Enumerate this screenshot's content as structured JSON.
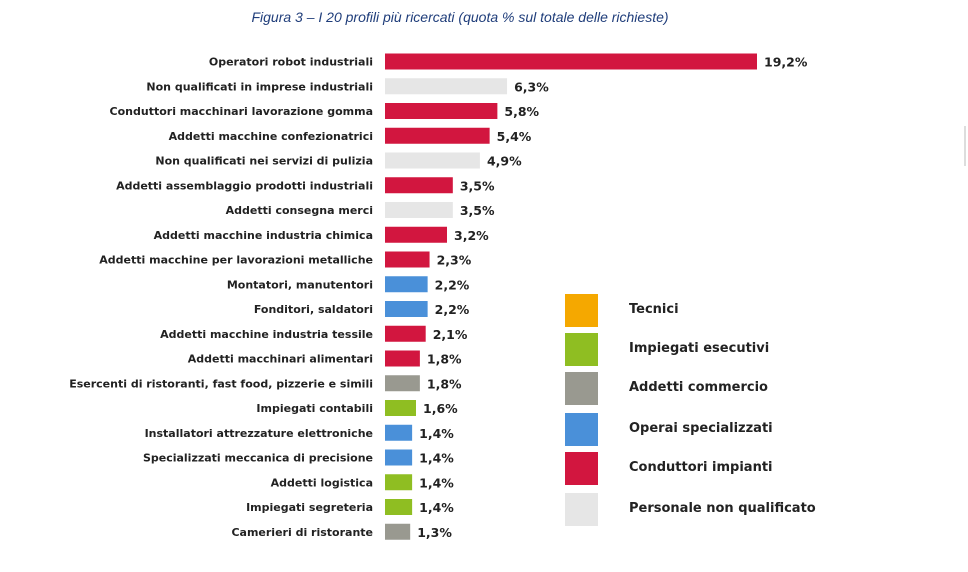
{
  "title": "Figura 3 – I 20 profili più ricercati (quota % sul totale delle richieste)",
  "colors": {
    "tecnici": "#f5a800",
    "impiegati": "#8fbe22",
    "commercio": "#999990",
    "operai": "#4a90d9",
    "conduttori": "#d2163f",
    "non_qualificato": "#e6e6e6"
  },
  "legend": [
    {
      "label": "Tecnici",
      "group": "tecnici"
    },
    {
      "label": "Impiegati esecutivi",
      "group": "impiegati"
    },
    {
      "label": "Addetti commercio",
      "group": "commercio"
    },
    {
      "label": "Operai specializzati",
      "group": "operai"
    },
    {
      "label": "Conduttori impianti",
      "group": "conduttori"
    },
    {
      "label": "Personale non qualificato",
      "group": "non_qualificato"
    }
  ],
  "chart_data": {
    "type": "bar",
    "orientation": "horizontal",
    "title": "Figura 3 – I 20 profili più ricercati (quota % sul totale delle richieste)",
    "xlabel": "",
    "ylabel": "",
    "xlim": [
      0,
      19.2
    ],
    "grid": false,
    "legend_position": "bottom-right",
    "categories": [
      "Operatori robot industriali",
      "Non qualificati in imprese industriali",
      "Conduttori macchinari lavorazione gomma",
      "Addetti macchine confezionatrici",
      "Non qualificati nei servizi di pulizia",
      "Addetti assemblaggio prodotti industriali",
      "Addetti consegna merci",
      "Addetti macchine industria chimica",
      "Addetti macchine per lavorazioni metalliche",
      "Montatori, manutentori",
      "Fonditori, saldatori",
      "Addetti macchine industria tessile",
      "Addetti macchinari alimentari",
      "Esercenti di ristoranti, fast food, pizzerie e simili",
      "Impiegati contabili",
      "Installatori attrezzature elettroniche",
      "Specializzati meccanica di precisione",
      "Addetti logistica",
      "Impiegati segreteria",
      "Camerieri di ristorante"
    ],
    "values": [
      19.2,
      6.3,
      5.8,
      5.4,
      4.9,
      3.5,
      3.5,
      3.2,
      2.3,
      2.2,
      2.2,
      2.1,
      1.8,
      1.8,
      1.6,
      1.4,
      1.4,
      1.4,
      1.4,
      1.3
    ],
    "value_labels": [
      "19,2%",
      "6,3%",
      "5,8%",
      "5,4%",
      "4,9%",
      "3,5%",
      "3,5%",
      "3,2%",
      "2,3%",
      "2,2%",
      "2,2%",
      "2,1%",
      "1,8%",
      "1,8%",
      "1,6%",
      "1,4%",
      "1,4%",
      "1,4%",
      "1,4%",
      "1,3%"
    ],
    "groups": [
      "conduttori",
      "non_qualificato",
      "conduttori",
      "conduttori",
      "non_qualificato",
      "conduttori",
      "non_qualificato",
      "conduttori",
      "conduttori",
      "operai",
      "operai",
      "conduttori",
      "conduttori",
      "commercio",
      "impiegati",
      "operai",
      "operai",
      "impiegati",
      "impiegati",
      "commercio"
    ]
  }
}
